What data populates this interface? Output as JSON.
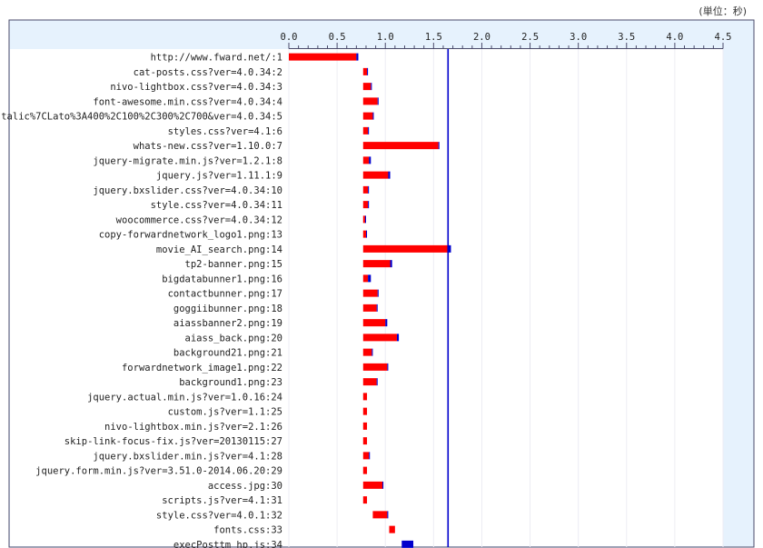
{
  "unit_label": "(単位：秒)",
  "colors": {
    "bg": "#e6f2fd",
    "red": "#ff0000",
    "blue": "#0000cc",
    "axis": "#4a4a6a"
  },
  "chart_data": {
    "type": "bar",
    "orientation": "horizontal",
    "stacked": true,
    "xlim": [
      0,
      4.5
    ],
    "x_ticks": [
      "0.0",
      "0.5",
      "1.0",
      "1.5",
      "2.0",
      "2.5",
      "3.0",
      "3.5",
      "4.0",
      "4.5"
    ],
    "reference_line": 1.65,
    "categories": [
      "http://www.fward.net/:1",
      "cat-posts.css?ver=4.0.34:2",
      "nivo-lightbox.css?ver=4.0.34:3",
      "font-awesome.min.css?ver=4.0.34:4",
      "talic%7CLato%3A400%2C100%2C300%2C700&ver=4.0.34:5",
      "styles.css?ver=4.1:6",
      "whats-new.css?ver=1.10.0:7",
      "jquery-migrate.min.js?ver=1.2.1:8",
      "jquery.js?ver=1.11.1:9",
      "jquery.bxslider.css?ver=4.0.34:10",
      "style.css?ver=4.0.34:11",
      "woocommerce.css?ver=4.0.34:12",
      "copy-forwardnetwork_logo1.png:13",
      "movie_AI_search.png:14",
      "tp2-banner.png:15",
      "bigdatabunner1.png:16",
      "contactbunner.png:17",
      "goggiibunner.png:18",
      "aiassbanner2.png:19",
      "aiass_back.png:20",
      "background21.png:21",
      "forwardnetwork_image1.png:22",
      "background1.png:23",
      "jquery.actual.min.js?ver=1.0.16:24",
      "custom.js?ver=1.1:25",
      "nivo-lightbox.min.js?ver=2.1:26",
      "skip-link-focus-fix.js?ver=20130115:27",
      "jquery.bxslider.min.js?ver=4.1:28",
      "jquery.form.min.js?ver=3.51.0-2014.06.20:29",
      "access.jpg:30",
      "scripts.js?ver=4.1:31",
      "style.css?ver=4.0.1:32",
      "fonts.css:33",
      "execPosttm_hp.js:34"
    ],
    "bars": [
      [
        0.0,
        0.7,
        0.72
      ],
      [
        0.77,
        0.81,
        0.82
      ],
      [
        0.77,
        0.85,
        0.86
      ],
      [
        0.77,
        0.92,
        0.93
      ],
      [
        0.77,
        0.87,
        0.88
      ],
      [
        0.77,
        0.82,
        0.83
      ],
      [
        0.77,
        1.55,
        1.56
      ],
      [
        0.77,
        0.83,
        0.85
      ],
      [
        0.77,
        1.03,
        1.05
      ],
      [
        0.77,
        0.82,
        0.83
      ],
      [
        0.77,
        0.82,
        0.83
      ],
      [
        0.77,
        0.79,
        0.8
      ],
      [
        0.77,
        0.8,
        0.81
      ],
      [
        0.77,
        1.65,
        1.68
      ],
      [
        0.77,
        1.05,
        1.07
      ],
      [
        0.77,
        0.82,
        0.85
      ],
      [
        0.77,
        0.92,
        0.93
      ],
      [
        0.77,
        0.91,
        0.92
      ],
      [
        0.77,
        1.0,
        1.02
      ],
      [
        0.77,
        1.12,
        1.14
      ],
      [
        0.77,
        0.86,
        0.87
      ],
      [
        0.77,
        1.02,
        1.03
      ],
      [
        0.77,
        0.91,
        0.92
      ],
      [
        0.77,
        0.81,
        0.81
      ],
      [
        0.77,
        0.81,
        0.81
      ],
      [
        0.77,
        0.81,
        0.81
      ],
      [
        0.77,
        0.81,
        0.81
      ],
      [
        0.77,
        0.83,
        0.84
      ],
      [
        0.77,
        0.81,
        0.81
      ],
      [
        0.77,
        0.97,
        0.98
      ],
      [
        0.77,
        0.81,
        0.81
      ],
      [
        0.87,
        1.02,
        1.03
      ],
      [
        1.04,
        1.1,
        1.1
      ],
      [
        1.17,
        1.17,
        1.29
      ]
    ]
  }
}
